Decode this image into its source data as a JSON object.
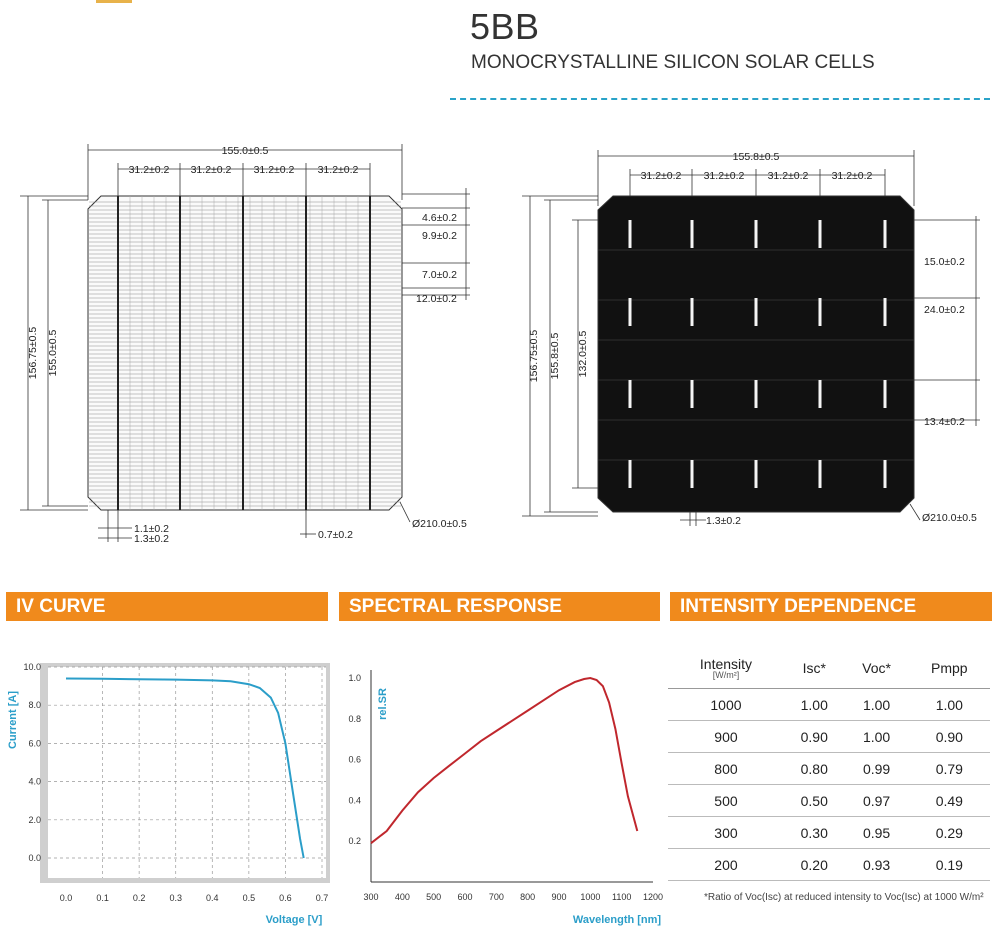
{
  "header": {
    "title": "5BB",
    "subtitle": "MONOCRYSTALLINE SILICON SOLAR CELLS"
  },
  "front_drawing": {
    "total_width": "155.0±0.5",
    "busbar_pitch": [
      "31.2±0.2",
      "31.2±0.2",
      "31.2±0.2",
      "31.2±0.2"
    ],
    "right_dims": [
      "4.6±0.2",
      "9.9±0.2",
      "7.0±0.2",
      "12.0±0.2"
    ],
    "outer_height": "156.75±0.5",
    "inner_height": "155.0±0.5",
    "bottom_dims": [
      "1.1±0.2",
      "1.3±0.2",
      "0.7±0.2"
    ],
    "diameter": "Ø210.0±0.5"
  },
  "back_drawing": {
    "total_width": "155.8±0.5",
    "busbar_pitch": [
      "31.2±0.2",
      "31.2±0.2",
      "31.2±0.2",
      "31.2±0.2"
    ],
    "right_dims": [
      "15.0±0.2",
      "24.0±0.2",
      "13.4±0.2"
    ],
    "outer_height": "156.75±0.5",
    "inner_height": "155.8±0.5",
    "pad_span": "132.0±0.5",
    "bottom_dim": "1.3±0.2",
    "diameter": "Ø210.0±0.5"
  },
  "sections": {
    "iv_curve": "IV CURVE",
    "spectral_response": "SPECTRAL RESPONSE",
    "intensity_dependence": "INTENSITY DEPENDENCE"
  },
  "chart_data": [
    {
      "type": "line",
      "xlabel": "Voltage [V]",
      "ylabel": "Current [A]",
      "xlim": [
        0.0,
        0.7
      ],
      "ylim": [
        0.0,
        10.0
      ],
      "x_ticks": [
        "0.0",
        "0.1",
        "0.2",
        "0.3",
        "0.4",
        "0.5",
        "0.6",
        "0.7"
      ],
      "y_ticks": [
        "0.0",
        "2.0",
        "4.0",
        "6.0",
        "8.0",
        "10.0"
      ],
      "grid": true,
      "color": "#2b9ec9",
      "x": [
        0.0,
        0.1,
        0.2,
        0.3,
        0.4,
        0.45,
        0.5,
        0.53,
        0.56,
        0.58,
        0.6,
        0.62,
        0.64,
        0.65
      ],
      "y": [
        9.4,
        9.38,
        9.36,
        9.34,
        9.3,
        9.25,
        9.1,
        8.9,
        8.4,
        7.6,
        6.0,
        3.5,
        1.0,
        0.0
      ]
    },
    {
      "type": "line",
      "xlabel": "Wavelength [nm]",
      "ylabel": "rel.SR",
      "xlim": [
        300,
        1200
      ],
      "ylim": [
        0.0,
        1.0
      ],
      "x_ticks": [
        "300",
        "400",
        "500",
        "600",
        "700",
        "800",
        "900",
        "1000",
        "1100",
        "1200"
      ],
      "y_ticks": [
        "0.2",
        "0.4",
        "0.6",
        "0.8",
        "1.0"
      ],
      "grid": false,
      "color": "#c0272d",
      "x": [
        300,
        350,
        400,
        450,
        500,
        550,
        600,
        650,
        700,
        750,
        800,
        850,
        900,
        950,
        980,
        1000,
        1020,
        1040,
        1060,
        1080,
        1100,
        1120,
        1150
      ],
      "y": [
        0.19,
        0.25,
        0.35,
        0.44,
        0.51,
        0.57,
        0.63,
        0.69,
        0.74,
        0.79,
        0.84,
        0.89,
        0.94,
        0.98,
        0.995,
        1.0,
        0.99,
        0.96,
        0.88,
        0.75,
        0.58,
        0.42,
        0.25
      ]
    }
  ],
  "intensity_table": {
    "headers": [
      "Intensity",
      "Isc*",
      "Voc*",
      "Pmpp"
    ],
    "header_unit": "[W/m²]",
    "rows": [
      [
        "1000",
        "1.00",
        "1.00",
        "1.00"
      ],
      [
        "900",
        "0.90",
        "1.00",
        "0.90"
      ],
      [
        "800",
        "0.80",
        "0.99",
        "0.79"
      ],
      [
        "500",
        "0.50",
        "0.97",
        "0.49"
      ],
      [
        "300",
        "0.30",
        "0.95",
        "0.29"
      ],
      [
        "200",
        "0.20",
        "0.93",
        "0.19"
      ]
    ],
    "footnote": "*Ratio of Voc(Isc) at reduced intensity to Voc(Isc) at 1000 W/m²"
  }
}
